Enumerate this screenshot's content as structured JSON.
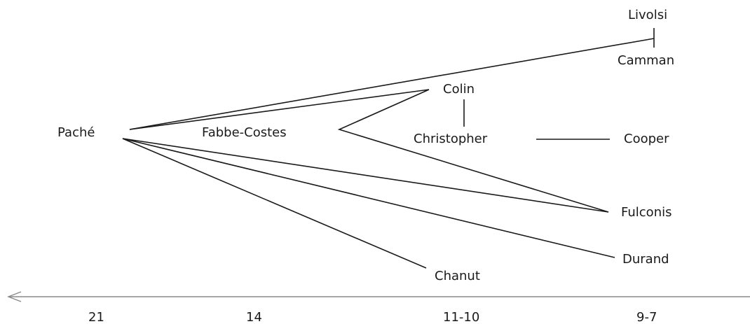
{
  "authors": {
    "livolsi": "Livolsi",
    "camman": "Camman",
    "colin": "Colin",
    "pache": "Paché",
    "fabbe_costes": "Fabbe-Costes",
    "christopher": "Christopher",
    "cooper": "Cooper",
    "fulconis": "Fulconis",
    "durand": "Durand",
    "chanut": "Chanut"
  },
  "timeline": {
    "ticks": [
      "21",
      "14",
      "11-10",
      "9-7"
    ],
    "direction": "left"
  },
  "colors": {
    "ink": "#1a1a1a",
    "axis": "#8a8a8a"
  }
}
